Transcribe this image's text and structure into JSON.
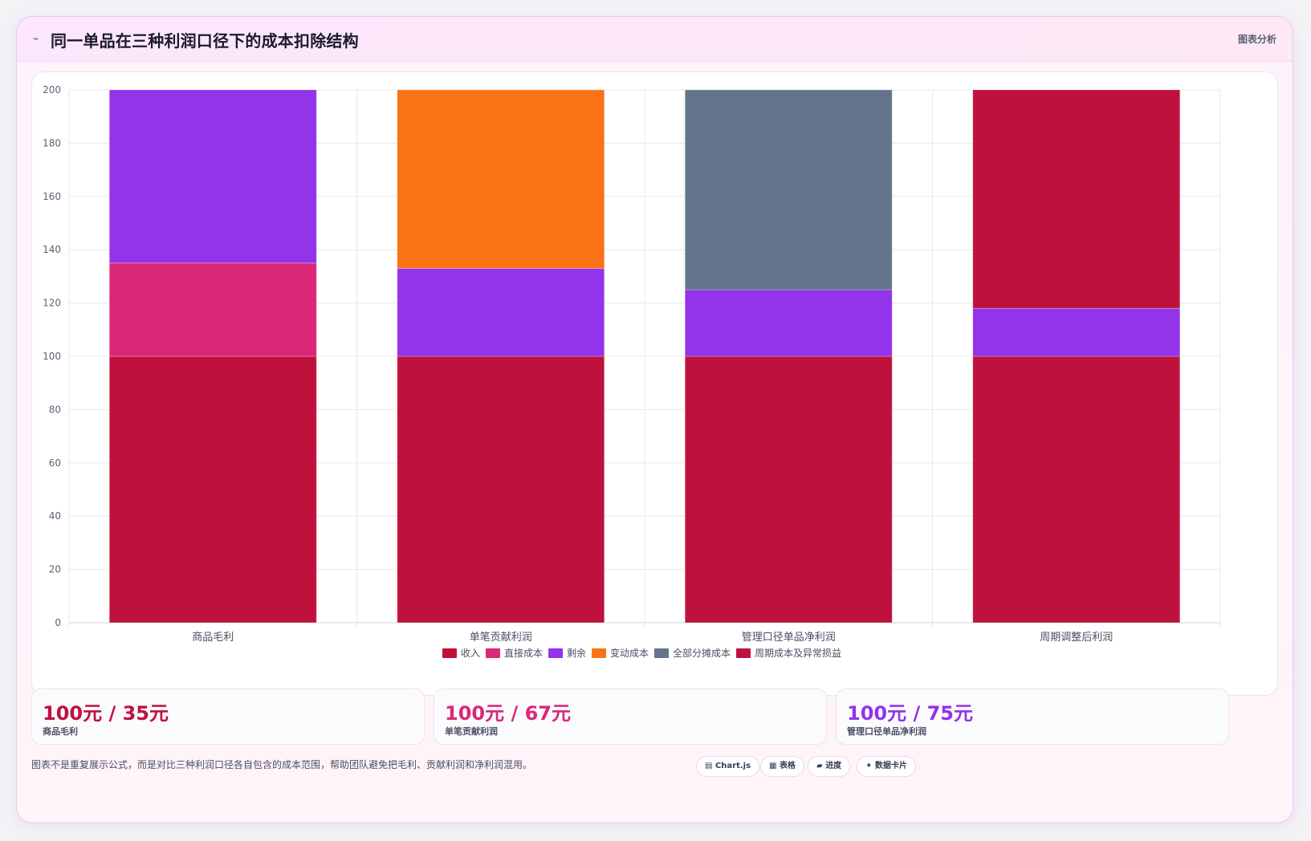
{
  "header": {
    "icon": "⌁",
    "title": "同一单品在三种利润口径下的成本扣除结构",
    "tag": "图表分析"
  },
  "chart_data": {
    "type": "bar",
    "stacked": true,
    "categories": [
      "商品毛利",
      "单笔贡献利润",
      "管理口径单品净利润",
      "周期调整后利润"
    ],
    "ylim": [
      0,
      200
    ],
    "yticks": [
      0,
      20,
      40,
      60,
      80,
      100,
      120,
      140,
      160,
      180,
      200
    ],
    "grid": true,
    "legend_position": "bottom",
    "series": [
      {
        "name": "收入",
        "color": "#be123c",
        "values": [
          100,
          100,
          100,
          100
        ]
      },
      {
        "name": "直接成本",
        "color": "#db2777",
        "values": [
          35,
          0,
          0,
          0
        ]
      },
      {
        "name": "剩余",
        "color": "#9333ea",
        "values": [
          65,
          33,
          25,
          18
        ]
      },
      {
        "name": "变动成本",
        "color": "#f97316",
        "values": [
          0,
          67,
          0,
          0
        ]
      },
      {
        "name": "全部分摊成本",
        "color": "#64748b",
        "values": [
          0,
          0,
          75,
          0
        ]
      },
      {
        "name": "周期成本及异常损益",
        "color": "#be123c",
        "values": [
          0,
          0,
          0,
          82
        ]
      }
    ]
  },
  "stats": [
    {
      "value": "100元 / 35元",
      "label": "商品毛利",
      "color": "#be123c"
    },
    {
      "value": "100元 / 67元",
      "label": "单笔贡献利润",
      "color": "#db2777"
    },
    {
      "value": "100元 / 75元",
      "label": "管理口径单品净利润",
      "color": "#9333ea"
    }
  ],
  "footnote": "图表不是重复展示公式，而是对比三种利润口径各自包含的成本范围，帮助团队避免把毛利、贡献利润和净利润混用。",
  "badges": [
    {
      "icon": "▤",
      "label": "Chart.js"
    },
    {
      "icon": "▦",
      "label": "表格"
    },
    {
      "icon": "▰",
      "label": "进度"
    },
    {
      "icon": "✦",
      "label": "数据卡片"
    }
  ]
}
